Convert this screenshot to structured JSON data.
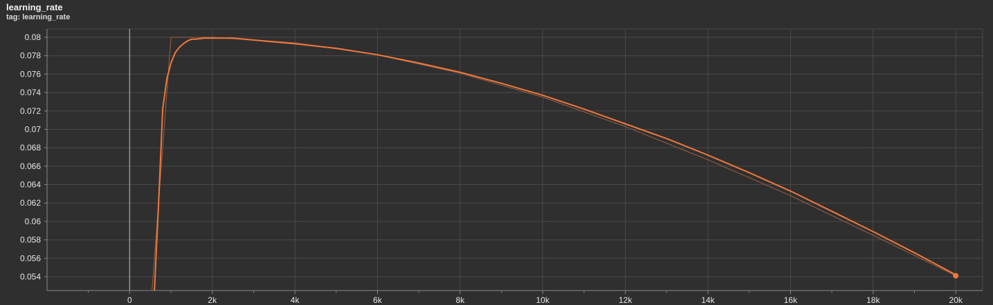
{
  "card": {
    "title": "learning_rate",
    "tag_prefix": "tag:",
    "tag": "learning_rate"
  },
  "colors": {
    "background": "#2f2f2f",
    "grid": "#4a4a4a",
    "axis": "#8a8a8a",
    "zero_line": "#9a9a9a",
    "smoothed": "#f0783c",
    "raw": "#8a5a45",
    "tick_text": "#e6e6e6"
  },
  "chart_data": {
    "type": "line",
    "title": "learning_rate",
    "xlabel": "",
    "ylabel": "",
    "xlim": [
      -2000,
      20650
    ],
    "ylim": [
      0.0525,
      0.0809
    ],
    "x_ticks": [
      0,
      2000,
      4000,
      6000,
      8000,
      10000,
      12000,
      14000,
      16000,
      18000,
      20000
    ],
    "x_tick_labels": [
      "0",
      "2k",
      "4k",
      "6k",
      "8k",
      "10k",
      "12k",
      "14k",
      "16k",
      "18k",
      "20k"
    ],
    "y_ticks": [
      0.054,
      0.056,
      0.058,
      0.06,
      0.062,
      0.064,
      0.066,
      0.068,
      0.07,
      0.072,
      0.074,
      0.076,
      0.078,
      0.08
    ],
    "y_tick_labels": [
      "0.054",
      "0.056",
      "0.058",
      "0.06",
      "0.062",
      "0.064",
      "0.066",
      "0.068",
      "0.07",
      "0.072",
      "0.074",
      "0.076",
      "0.078",
      "0.08"
    ],
    "grid": true,
    "series": [
      {
        "role": "raw",
        "x": [
          500,
          1000,
          2000,
          4000,
          6000,
          8000,
          10000,
          12000,
          14000,
          16000,
          18000,
          20000
        ],
        "y": [
          0.05,
          0.08,
          0.08,
          0.0794,
          0.0781,
          0.0761,
          0.0735,
          0.0703,
          0.0667,
          0.0628,
          0.0585,
          0.0541
        ]
      },
      {
        "role": "smoothed",
        "x": [
          600,
          700,
          800,
          900,
          1000,
          1100,
          1200,
          1300,
          1400,
          1500,
          1600,
          1800,
          2000,
          2500,
          3000,
          4000,
          5000,
          6000,
          7000,
          8000,
          9000,
          10000,
          11000,
          12000,
          13000,
          14000,
          15000,
          16000,
          17000,
          18000,
          19000,
          20000
        ],
        "y": [
          0.0525,
          0.062,
          0.0722,
          0.0755,
          0.0772,
          0.0783,
          0.0789,
          0.0793,
          0.0796,
          0.0798,
          0.0798,
          0.0799,
          0.0799,
          0.0799,
          0.0797,
          0.0793,
          0.0788,
          0.0781,
          0.0772,
          0.0762,
          0.075,
          0.0737,
          0.0722,
          0.0706,
          0.069,
          0.0672,
          0.0653,
          0.0633,
          0.0611,
          0.0589,
          0.0566,
          0.0542
        ]
      }
    ],
    "last_point": {
      "x": 20000,
      "y": 0.0541
    }
  }
}
